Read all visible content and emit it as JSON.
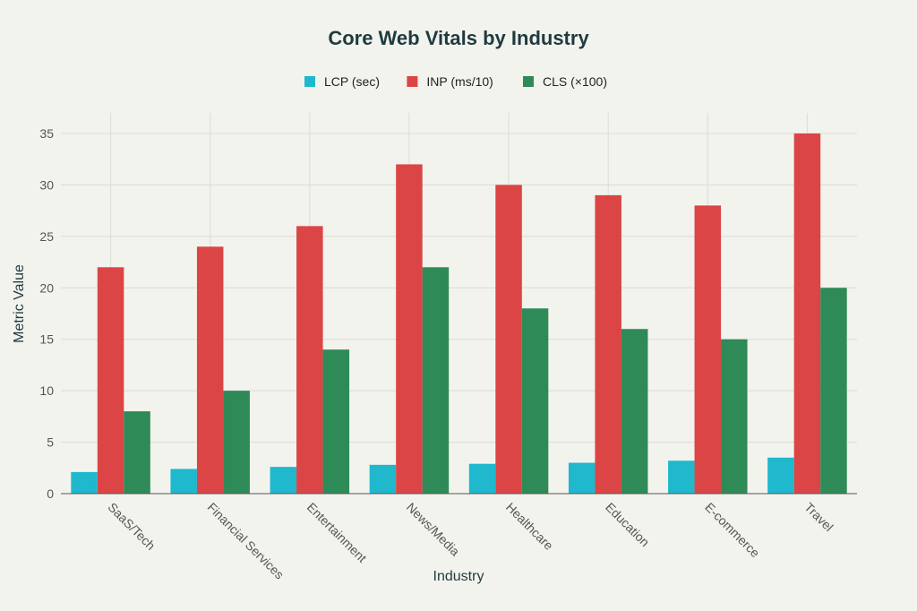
{
  "chart_data": {
    "type": "bar",
    "title": "Core Web Vitals by Industry",
    "xlabel": "Industry",
    "ylabel": "Metric Value",
    "ylim": [
      0,
      37
    ],
    "yticks": [
      0,
      5,
      10,
      15,
      20,
      25,
      30,
      35
    ],
    "grid": true,
    "legend_position": "top-center",
    "categories": [
      "SaaS/Tech",
      "Financial Services",
      "Entertainment",
      "News/Media",
      "Healthcare",
      "Education",
      "E-commerce",
      "Travel"
    ],
    "series": [
      {
        "name": "LCP (sec)",
        "color": "#1fb8cd",
        "values": [
          2.1,
          2.4,
          2.6,
          2.8,
          2.9,
          3.0,
          3.2,
          3.5
        ]
      },
      {
        "name": "INP (ms/10)",
        "color": "#db4545",
        "values": [
          22,
          24,
          26,
          32,
          30,
          29,
          28,
          35
        ]
      },
      {
        "name": "CLS (×100)",
        "color": "#2e8b57",
        "values": [
          8,
          10,
          14,
          22,
          18,
          16,
          15,
          20
        ]
      }
    ]
  }
}
